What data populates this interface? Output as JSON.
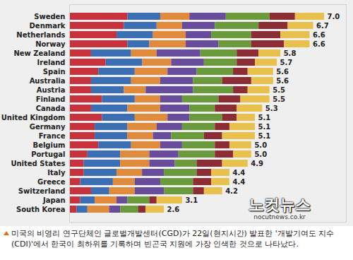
{
  "chart_data": {
    "type": "bar",
    "orientation": "horizontal",
    "stacked": true,
    "data_labels": true,
    "tick_labels": "y",
    "grid": false,
    "categories": [
      "Sweden",
      "Denmark",
      "Netherlands",
      "Norway",
      "New Zealand",
      "Ireland",
      "Spain",
      "Australia",
      "Austria",
      "Finland",
      "Canada",
      "United Kingdom",
      "Germany",
      "France",
      "Belgium",
      "Portugal",
      "United States",
      "Italy",
      "Greece",
      "Switzerland",
      "Japan",
      "South Korea"
    ],
    "series": [
      {
        "color": "#c8323c",
        "values": [
          1.6,
          1.5,
          1.3,
          1.6,
          0.6,
          1.0,
          0.8,
          0.6,
          0.6,
          0.9,
          0.6,
          0.9,
          0.7,
          0.7,
          0.8,
          0.5,
          0.4,
          0.4,
          0.3,
          0.6,
          0.3,
          0.2
        ]
      },
      {
        "color": "#3c6eb4",
        "values": [
          0.9,
          0.9,
          1.0,
          0.6,
          1.1,
          1.0,
          1.0,
          1.1,
          0.9,
          0.9,
          1.0,
          0.9,
          0.9,
          0.9,
          0.9,
          0.9,
          1.0,
          0.9,
          0.9,
          0.5,
          0.4,
          0.3
        ]
      },
      {
        "color": "#e08a3c",
        "values": [
          0.8,
          0.7,
          0.9,
          1.0,
          0.7,
          0.8,
          0.9,
          0.8,
          0.6,
          0.7,
          0.9,
          0.9,
          0.8,
          0.7,
          0.8,
          0.8,
          0.8,
          0.7,
          0.6,
          0.7,
          0.6,
          0.6
        ]
      },
      {
        "color": "#6a4c9c",
        "values": [
          1.0,
          0.9,
          0.7,
          0.9,
          1.2,
          0.9,
          0.8,
          0.9,
          1.3,
          0.6,
          0.8,
          0.6,
          0.7,
          0.5,
          0.6,
          0.8,
          0.7,
          0.6,
          0.7,
          0.8,
          0.3,
          0.3
        ]
      },
      {
        "color": "#6a9a3c",
        "values": [
          1.2,
          1.2,
          1.1,
          0.9,
          1.0,
          0.9,
          1.0,
          0.8,
          1.1,
          1.0,
          0.7,
          0.9,
          0.9,
          0.9,
          0.9,
          1.0,
          0.6,
          0.9,
          0.9,
          0.8,
          0.6,
          0.5
        ]
      },
      {
        "color": "#8c2c34",
        "values": [
          0.7,
          0.8,
          0.8,
          0.9,
          0.6,
          0.5,
          0.4,
          0.8,
          0.4,
          0.6,
          0.6,
          0.4,
          0.4,
          0.5,
          0.4,
          0.5,
          0.7,
          0.4,
          0.5,
          0.3,
          0.2,
          0.2
        ]
      },
      {
        "color": "#e8c04c",
        "values": [
          0.8,
          0.7,
          0.8,
          0.7,
          0.6,
          0.6,
          0.7,
          0.6,
          0.6,
          0.8,
          0.7,
          0.5,
          0.7,
          0.9,
          0.6,
          0.5,
          0.7,
          0.5,
          0.5,
          0.5,
          0.7,
          0.5
        ]
      }
    ],
    "totals": [
      7.0,
      6.7,
      6.6,
      6.6,
      5.8,
      5.7,
      5.6,
      5.6,
      5.5,
      5.5,
      5.3,
      5.1,
      5.1,
      5.1,
      5.0,
      5.0,
      4.9,
      4.4,
      4.4,
      4.2,
      3.1,
      2.6
    ],
    "value_labels": [
      "7.0",
      "6.7",
      "6.6",
      "6.6",
      "5.8",
      "5.7",
      "5.6",
      "5.6",
      "5.5",
      "5.5",
      "5.3",
      "5.1",
      "5.1",
      "5.1",
      "5.0",
      "5.0",
      "4.9",
      "4.4",
      "4.4",
      "4.2",
      "3.1",
      "2.6"
    ],
    "xlim": [
      0,
      7.6
    ],
    "xticks": [],
    "caption": "미국의 비영리 연구단체인 글로벌개발센터(CGD)가 22일(현지시간) 발표한 '개발기여도 지수(CDI)'에서 한국이 최하위를 기록하며 빈곤국 지원에 가장 인색한 것으로 나타났다.",
    "watermark": [
      "노컷뉴스",
      "nocutnews.co.kr"
    ]
  }
}
